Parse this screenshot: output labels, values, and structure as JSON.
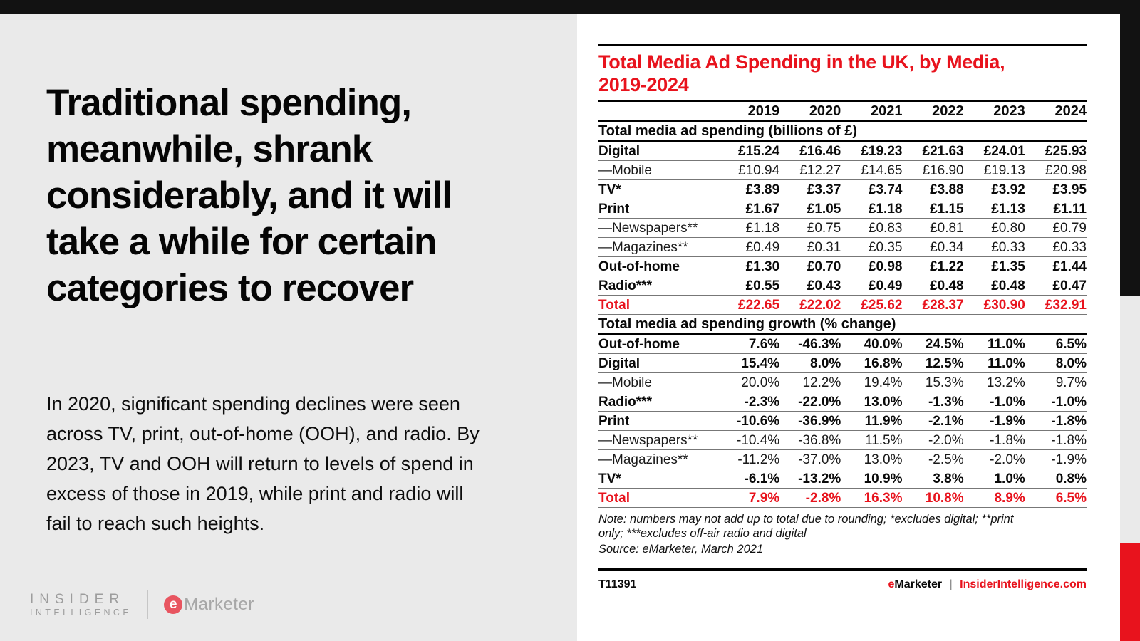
{
  "colors": {
    "accent_red": "#e8131d",
    "bar_black": "#121212",
    "page_bg": "#eaeaea",
    "card_bg": "#ffffff",
    "logo_gray": "#9d9d9d"
  },
  "left_panel": {
    "headline": "Traditional spending,\nmeanwhile, shrank\nconsiderably, and it will\ntake a while for certain\ncategories to recover",
    "body": "In 2020, significant spending declines were seen\nacross TV, print, out-of-home (OOH), and radio. By\n2023, TV and OOH will return to levels of spend in\nexcess of those in 2019, while print and radio will\nfail to reach such heights.",
    "logo": {
      "insider_line1": "INSIDER",
      "insider_line2": "INTELLIGENCE",
      "emarketer_e": "e",
      "emarketer_rest": "Marketer"
    }
  },
  "table": {
    "title": "Total Media Ad Spending in the UK, by Media,\n2019-2024",
    "note": "Note: numbers may not add up to total due to rounding; *excludes digital; **print\nonly; ***excludes off-air radio and digital",
    "source": "Source: eMarketer, March 2021",
    "footer": {
      "id": "T11391",
      "brand_e": "e",
      "brand_rest": "Marketer",
      "separator": "|",
      "site": "InsiderIntelligence.com"
    }
  },
  "chart_data": {
    "type": "table",
    "title": "Total Media Ad Spending in the UK, by Media, 2019-2024",
    "columns": [
      "2019",
      "2020",
      "2021",
      "2022",
      "2023",
      "2024"
    ],
    "sections": [
      {
        "header": "Total media ad spending (billions of £)",
        "rows": [
          {
            "label": "Digital",
            "bold": true,
            "values": [
              "£15.24",
              "£16.46",
              "£19.23",
              "£21.63",
              "£24.01",
              "£25.93"
            ]
          },
          {
            "label": "—Mobile",
            "bold": false,
            "values": [
              "£10.94",
              "£12.27",
              "£14.65",
              "£16.90",
              "£19.13",
              "£20.98"
            ]
          },
          {
            "label": "TV*",
            "bold": true,
            "values": [
              "£3.89",
              "£3.37",
              "£3.74",
              "£3.88",
              "£3.92",
              "£3.95"
            ]
          },
          {
            "label": "Print",
            "bold": true,
            "values": [
              "£1.67",
              "£1.05",
              "£1.18",
              "£1.15",
              "£1.13",
              "£1.11"
            ]
          },
          {
            "label": "—Newspapers**",
            "bold": false,
            "values": [
              "£1.18",
              "£0.75",
              "£0.83",
              "£0.81",
              "£0.80",
              "£0.79"
            ]
          },
          {
            "label": "—Magazines**",
            "bold": false,
            "values": [
              "£0.49",
              "£0.31",
              "£0.35",
              "£0.34",
              "£0.33",
              "£0.33"
            ]
          },
          {
            "label": "Out-of-home",
            "bold": true,
            "values": [
              "£1.30",
              "£0.70",
              "£0.98",
              "£1.22",
              "£1.35",
              "£1.44"
            ]
          },
          {
            "label": "Radio***",
            "bold": true,
            "values": [
              "£0.55",
              "£0.43",
              "£0.49",
              "£0.48",
              "£0.48",
              "£0.47"
            ]
          },
          {
            "label": "Total",
            "bold": true,
            "red": true,
            "values": [
              "£22.65",
              "£22.02",
              "£25.62",
              "£28.37",
              "£30.90",
              "£32.91"
            ]
          }
        ]
      },
      {
        "header": "Total media ad spending growth (% change)",
        "rows": [
          {
            "label": "Out-of-home",
            "bold": true,
            "values": [
              "7.6%",
              "-46.3%",
              "40.0%",
              "24.5%",
              "11.0%",
              "6.5%"
            ]
          },
          {
            "label": "Digital",
            "bold": true,
            "values": [
              "15.4%",
              "8.0%",
              "16.8%",
              "12.5%",
              "11.0%",
              "8.0%"
            ]
          },
          {
            "label": "—Mobile",
            "bold": false,
            "values": [
              "20.0%",
              "12.2%",
              "19.4%",
              "15.3%",
              "13.2%",
              "9.7%"
            ]
          },
          {
            "label": "Radio***",
            "bold": true,
            "values": [
              "-2.3%",
              "-22.0%",
              "13.0%",
              "-1.3%",
              "-1.0%",
              "-1.0%"
            ]
          },
          {
            "label": "Print",
            "bold": true,
            "values": [
              "-10.6%",
              "-36.9%",
              "11.9%",
              "-2.1%",
              "-1.9%",
              "-1.8%"
            ]
          },
          {
            "label": "—Newspapers**",
            "bold": false,
            "values": [
              "-10.4%",
              "-36.8%",
              "11.5%",
              "-2.0%",
              "-1.8%",
              "-1.8%"
            ]
          },
          {
            "label": "—Magazines**",
            "bold": false,
            "values": [
              "-11.2%",
              "-37.0%",
              "13.0%",
              "-2.5%",
              "-2.0%",
              "-1.9%"
            ]
          },
          {
            "label": "TV*",
            "bold": true,
            "values": [
              "-6.1%",
              "-13.2%",
              "10.9%",
              "3.8%",
              "1.0%",
              "0.8%"
            ]
          },
          {
            "label": "Total",
            "bold": true,
            "red": true,
            "values": [
              "7.9%",
              "-2.8%",
              "16.3%",
              "10.8%",
              "8.9%",
              "6.5%"
            ]
          }
        ]
      }
    ]
  }
}
